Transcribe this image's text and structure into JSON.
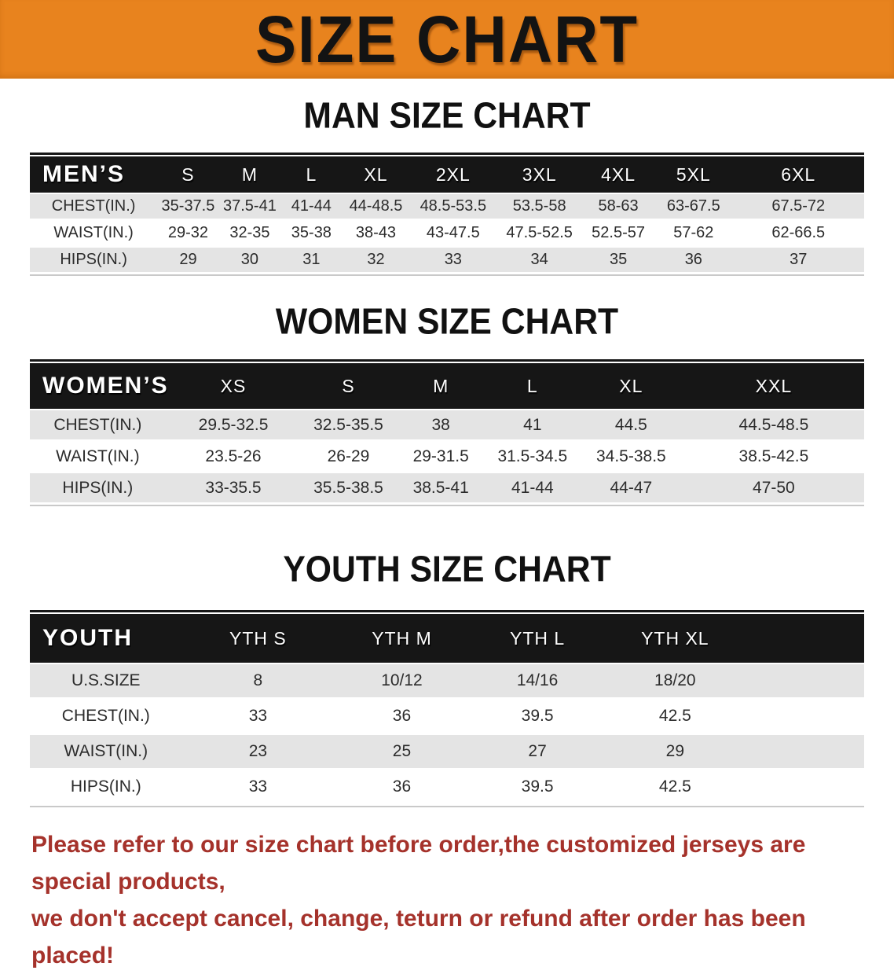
{
  "banner": {
    "title": "SIZE CHART",
    "bg_color": "#E8831E",
    "text_color": "#131313"
  },
  "sections": [
    {
      "heading": "MAN SIZE CHART",
      "table": {
        "title": "MEN’S",
        "header": [
          "MEN’S",
          "S",
          "M",
          "L",
          "XL",
          "2XL",
          "3XL",
          "4XL",
          "5XL",
          "6XL"
        ],
        "rows": [
          {
            "label": "CHEST(IN.)",
            "values": [
              "35-37.5",
              "37.5-41",
              "41-44",
              "44-48.5",
              "48.5-53.5",
              "53.5-58",
              "58-63",
              "63-67.5",
              "67.5-72"
            ]
          },
          {
            "label": "WAIST(IN.)",
            "values": [
              "29-32",
              "32-35",
              "35-38",
              "38-43",
              "43-47.5",
              "47.5-52.5",
              "52.5-57",
              "57-62",
              "62-66.5"
            ]
          },
          {
            "label": "HIPS(IN.)",
            "values": [
              "29",
              "30",
              "31",
              "32",
              "33",
              "34",
              "35",
              "36",
              "37"
            ]
          }
        ]
      }
    },
    {
      "heading": "WOMEN SIZE CHART",
      "table": {
        "title": "WOMEN’S",
        "header": [
          "WOMEN’S",
          "XS",
          "S",
          "M",
          "L",
          "XL",
          "XXL"
        ],
        "rows": [
          {
            "label": "CHEST(IN.)",
            "values": [
              "29.5-32.5",
              "32.5-35.5",
              "38",
              "41",
              "44.5",
              "44.5-48.5"
            ]
          },
          {
            "label": "WAIST(IN.)",
            "values": [
              "23.5-26",
              "26-29",
              "29-31.5",
              "31.5-34.5",
              "34.5-38.5",
              "38.5-42.5"
            ]
          },
          {
            "label": "HIPS(IN.)",
            "values": [
              "33-35.5",
              "35.5-38.5",
              "38.5-41",
              "41-44",
              "44-47",
              "47-50"
            ]
          }
        ]
      }
    },
    {
      "heading": "YOUTH SIZE CHART",
      "table": {
        "title": "YOUTH",
        "header": [
          "YOUTH",
          "YTH S",
          "YTH M",
          "YTH L",
          "YTH XL",
          ""
        ],
        "rows": [
          {
            "label": "U.S.SIZE",
            "values": [
              "8",
              "10/12",
              "14/16",
              "18/20",
              ""
            ]
          },
          {
            "label": "CHEST(IN.)",
            "values": [
              "33",
              "36",
              "39.5",
              "42.5",
              ""
            ]
          },
          {
            "label": "WAIST(IN.)",
            "values": [
              "23",
              "25",
              "27",
              "29",
              ""
            ]
          },
          {
            "label": "HIPS(IN.)",
            "values": [
              "33",
              "36",
              "39.5",
              "42.5",
              ""
            ]
          }
        ]
      }
    }
  ],
  "disclaimer": {
    "line1": "Please refer to our size chart before order,the customized jerseys are special products,",
    "line2": "we don't accept cancel, change, teturn or refund after order has been placed!",
    "color": "#A5322B"
  },
  "colors": {
    "banner_orange": "#E8831E",
    "table_header_black": "#161616",
    "row_gray": "#E4E4E4",
    "row_white": "#FFFFFF",
    "data_text": "#2C2C2C",
    "disclaimer_red": "#A5322B"
  }
}
